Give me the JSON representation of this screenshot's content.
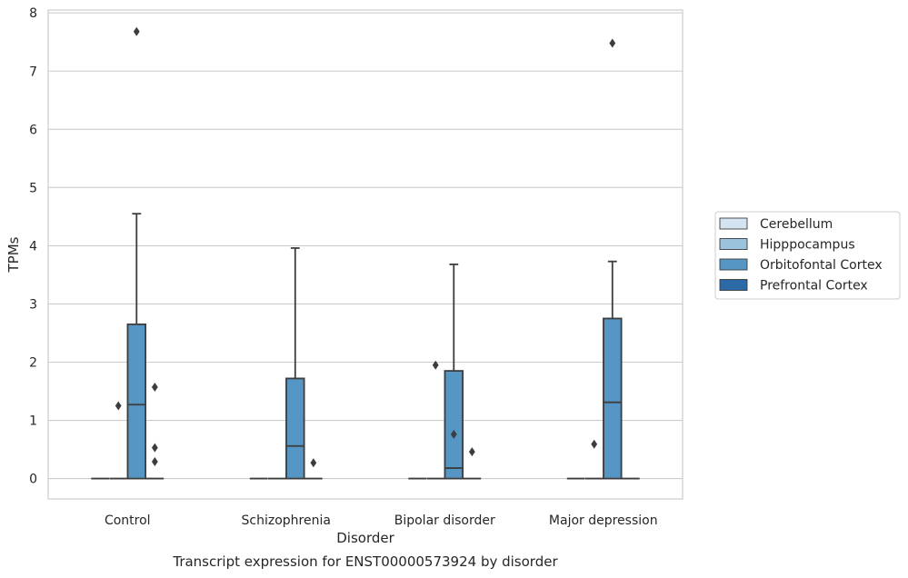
{
  "chart_data": {
    "type": "box",
    "title": "Transcript expression for ENST00000573924 by disorder",
    "xlabel": "Disorder",
    "ylabel": "TPMs",
    "ylim": [
      -0.35,
      8.05
    ],
    "yticks": [
      0,
      1,
      2,
      3,
      4,
      5,
      6,
      7,
      8
    ],
    "grid": "horizontal",
    "legend_position": "right",
    "categories": [
      "Control",
      "Schizophrenia",
      "Bipolar disorder",
      "Major depression"
    ],
    "series": [
      {
        "name": "Cerebellum",
        "color": "#d4e3f2",
        "boxes": [
          {
            "q1": 0,
            "median": 0,
            "q3": 0,
            "whisker_low": 0,
            "whisker_high": 0,
            "outliers": []
          },
          {
            "q1": 0,
            "median": 0,
            "q3": 0,
            "whisker_low": 0,
            "whisker_high": 0,
            "outliers": []
          },
          {
            "q1": 0,
            "median": 0,
            "q3": 0,
            "whisker_low": 0,
            "whisker_high": 0,
            "outliers": []
          },
          {
            "q1": 0,
            "median": 0,
            "q3": 0,
            "whisker_low": 0,
            "whisker_high": 0,
            "outliers": []
          }
        ]
      },
      {
        "name": "Hipppocampus",
        "color": "#9cc3dc",
        "boxes": [
          {
            "q1": 0,
            "median": 0,
            "q3": 0,
            "whisker_low": 0,
            "whisker_high": 0,
            "outliers": [
              1.25
            ]
          },
          {
            "q1": 0,
            "median": 0,
            "q3": 0,
            "whisker_low": 0,
            "whisker_high": 0,
            "outliers": []
          },
          {
            "q1": 0,
            "median": 0,
            "q3": 0,
            "whisker_low": 0,
            "whisker_high": 0,
            "outliers": [
              1.95
            ]
          },
          {
            "q1": 0,
            "median": 0,
            "q3": 0,
            "whisker_low": 0,
            "whisker_high": 0,
            "outliers": [
              0.59
            ]
          }
        ]
      },
      {
        "name": "Orbitofontal Cortex",
        "color": "#5696c4",
        "boxes": [
          {
            "q1": 0,
            "median": 1.27,
            "q3": 2.65,
            "whisker_low": 0,
            "whisker_high": 4.55,
            "outliers": [
              7.68
            ]
          },
          {
            "q1": 0,
            "median": 0.56,
            "q3": 1.72,
            "whisker_low": 0,
            "whisker_high": 3.96,
            "outliers": []
          },
          {
            "q1": 0,
            "median": 0.18,
            "q3": 1.85,
            "whisker_low": 0,
            "whisker_high": 3.68,
            "outliers": [
              0.76
            ]
          },
          {
            "q1": 0,
            "median": 1.31,
            "q3": 2.75,
            "whisker_low": 0,
            "whisker_high": 3.73,
            "outliers": [
              7.48
            ]
          }
        ]
      },
      {
        "name": "Prefrontal Cortex",
        "color": "#2b6aa6",
        "boxes": [
          {
            "q1": 0,
            "median": 0,
            "q3": 0,
            "whisker_low": 0,
            "whisker_high": 0,
            "outliers": [
              1.57,
              0.53,
              0.29
            ]
          },
          {
            "q1": 0,
            "median": 0,
            "q3": 0,
            "whisker_low": 0,
            "whisker_high": 0,
            "outliers": [
              0.27
            ]
          },
          {
            "q1": 0,
            "median": 0,
            "q3": 0,
            "whisker_low": 0,
            "whisker_high": 0,
            "outliers": [
              0.46
            ]
          },
          {
            "q1": 0,
            "median": 0,
            "q3": 0,
            "whisker_low": 0,
            "whisker_high": 0,
            "outliers": []
          }
        ]
      }
    ]
  }
}
